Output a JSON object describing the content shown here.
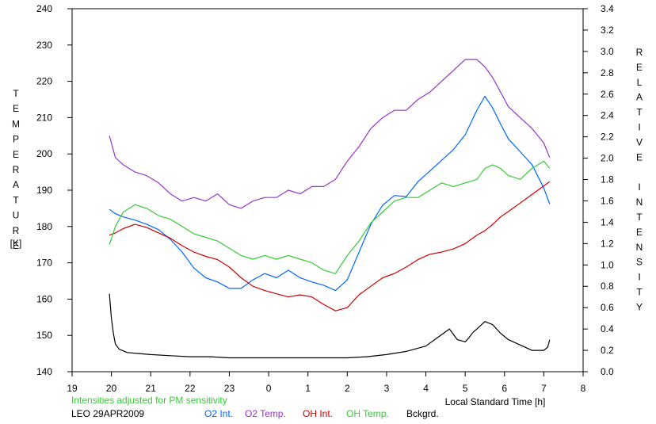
{
  "chart_data": {
    "type": "line",
    "xlabel": "Local Standard Time [h]",
    "ylabel_left": "TEMPERATURE",
    "ylabel_left_unit": "[K]",
    "ylabel_right": "RELATIVE INTENSITY",
    "xlim": [
      19,
      32
    ],
    "x_tick_values": [
      19,
      20,
      21,
      22,
      23,
      24,
      25,
      26,
      27,
      28,
      29,
      30,
      31,
      32
    ],
    "x_tick_labels": [
      "19",
      "20",
      "21",
      "22",
      "23",
      "0",
      "1",
      "2",
      "3",
      "4",
      "5",
      "6",
      "7",
      "8"
    ],
    "ylim_left": [
      140,
      240
    ],
    "y_left_ticks": [
      "140",
      "150",
      "160",
      "170",
      "180",
      "190",
      "200",
      "210",
      "220",
      "230",
      "240"
    ],
    "ylim_right": [
      0.0,
      3.4
    ],
    "y_right_ticks": [
      "0.0",
      "0.2",
      "0.4",
      "0.6",
      "0.8",
      "1.0",
      "1.2",
      "1.4",
      "1.6",
      "1.8",
      "2.0",
      "2.2",
      "2.4",
      "2.6",
      "2.8",
      "3.0",
      "3.2",
      "3.4"
    ],
    "grid": false,
    "legend_position": "bottom",
    "note": "Intensities adjusted for PM sensitivity",
    "station": "LEO 29APR2009",
    "series": [
      {
        "name": "O2 Int.",
        "axis": "right",
        "color": "#0066ff",
        "x": [
          19.95,
          20.1,
          20.3,
          20.6,
          20.9,
          21.2,
          21.5,
          21.8,
          22.1,
          22.4,
          22.7,
          23.0,
          23.3,
          23.6,
          23.9,
          24.2,
          24.5,
          24.8,
          25.1,
          25.4,
          25.7,
          26.0,
          26.3,
          26.6,
          26.9,
          27.2,
          27.5,
          27.8,
          28.1,
          28.4,
          28.7,
          29.0,
          29.3,
          29.5,
          29.7,
          29.9,
          30.1,
          30.4,
          30.7,
          31.0,
          31.15
        ],
        "y": [
          1.52,
          1.48,
          1.45,
          1.42,
          1.38,
          1.33,
          1.24,
          1.12,
          0.97,
          0.88,
          0.84,
          0.78,
          0.78,
          0.86,
          0.92,
          0.88,
          0.95,
          0.88,
          0.84,
          0.81,
          0.76,
          0.86,
          1.12,
          1.38,
          1.56,
          1.65,
          1.64,
          1.78,
          1.88,
          1.98,
          2.08,
          2.22,
          2.45,
          2.58,
          2.47,
          2.32,
          2.18,
          2.06,
          1.94,
          1.72,
          1.57
        ]
      },
      {
        "name": "O2 Temp.",
        "axis": "left",
        "color": "#9933cc",
        "x": [
          19.95,
          20.1,
          20.3,
          20.6,
          20.9,
          21.2,
          21.5,
          21.8,
          22.1,
          22.4,
          22.7,
          23.0,
          23.3,
          23.6,
          23.9,
          24.2,
          24.5,
          24.8,
          25.1,
          25.4,
          25.7,
          26.0,
          26.3,
          26.6,
          26.9,
          27.2,
          27.5,
          27.8,
          28.1,
          28.4,
          28.7,
          29.0,
          29.3,
          29.5,
          29.7,
          29.9,
          30.1,
          30.4,
          30.7,
          31.0,
          31.15
        ],
        "y": [
          205,
          199,
          197,
          195,
          194,
          192,
          189,
          187,
          188,
          187,
          189,
          186,
          185,
          187,
          188,
          188,
          190,
          189,
          191,
          191,
          193,
          198,
          202,
          207,
          210,
          212,
          212,
          215,
          217,
          220,
          223,
          226,
          226,
          224,
          221,
          217,
          213,
          210,
          207,
          203,
          199
        ]
      },
      {
        "name": "OH Int.",
        "axis": "right",
        "color": "#cc0000",
        "x": [
          19.95,
          20.1,
          20.3,
          20.6,
          20.9,
          21.2,
          21.5,
          21.8,
          22.1,
          22.4,
          22.7,
          23.0,
          23.3,
          23.6,
          23.9,
          24.2,
          24.5,
          24.8,
          25.1,
          25.4,
          25.7,
          26.0,
          26.3,
          26.6,
          26.9,
          27.2,
          27.5,
          27.8,
          28.1,
          28.4,
          28.7,
          29.0,
          29.3,
          29.5,
          29.7,
          29.9,
          30.1,
          30.4,
          30.7,
          31.0,
          31.15
        ],
        "y": [
          1.28,
          1.3,
          1.34,
          1.38,
          1.35,
          1.3,
          1.25,
          1.18,
          1.12,
          1.08,
          1.05,
          0.98,
          0.88,
          0.8,
          0.76,
          0.73,
          0.7,
          0.72,
          0.7,
          0.63,
          0.57,
          0.6,
          0.72,
          0.8,
          0.88,
          0.92,
          0.98,
          1.05,
          1.1,
          1.12,
          1.15,
          1.2,
          1.28,
          1.32,
          1.38,
          1.45,
          1.5,
          1.58,
          1.66,
          1.74,
          1.78
        ]
      },
      {
        "name": "OH Temp.",
        "axis": "left",
        "color": "#33cc33",
        "x": [
          19.95,
          20.1,
          20.3,
          20.6,
          20.9,
          21.2,
          21.5,
          21.8,
          22.1,
          22.4,
          22.7,
          23.0,
          23.3,
          23.6,
          23.9,
          24.2,
          24.5,
          24.8,
          25.1,
          25.4,
          25.7,
          26.0,
          26.3,
          26.6,
          26.9,
          27.2,
          27.5,
          27.8,
          28.1,
          28.4,
          28.7,
          29.0,
          29.3,
          29.5,
          29.7,
          29.9,
          30.1,
          30.4,
          30.7,
          31.0,
          31.15
        ],
        "y": [
          175,
          180,
          184,
          186,
          185,
          183,
          182,
          180,
          178,
          177,
          176,
          174,
          172,
          171,
          172,
          171,
          172,
          171,
          170,
          168,
          167,
          172,
          176,
          181,
          184,
          187,
          188,
          188,
          190,
          192,
          191,
          192,
          193,
          196,
          197,
          196,
          194,
          193,
          196,
          198,
          196
        ]
      },
      {
        "name": "Bckgrd.",
        "axis": "right",
        "color": "#000000",
        "x": [
          19.95,
          20.0,
          20.05,
          20.1,
          20.2,
          20.4,
          20.7,
          21.0,
          21.5,
          22.0,
          22.5,
          23.0,
          23.5,
          24.0,
          24.5,
          25.0,
          25.5,
          26.0,
          26.5,
          27.0,
          27.5,
          28.0,
          28.3,
          28.6,
          28.8,
          29.0,
          29.1,
          29.2,
          29.3,
          29.5,
          29.7,
          29.9,
          30.1,
          30.4,
          30.7,
          31.0,
          31.1,
          31.15
        ],
        "y": [
          0.73,
          0.5,
          0.36,
          0.26,
          0.21,
          0.18,
          0.17,
          0.16,
          0.15,
          0.14,
          0.14,
          0.13,
          0.13,
          0.13,
          0.13,
          0.13,
          0.13,
          0.13,
          0.14,
          0.16,
          0.19,
          0.24,
          0.32,
          0.4,
          0.3,
          0.28,
          0.32,
          0.37,
          0.4,
          0.47,
          0.44,
          0.36,
          0.3,
          0.25,
          0.2,
          0.2,
          0.23,
          0.3
        ]
      }
    ]
  }
}
